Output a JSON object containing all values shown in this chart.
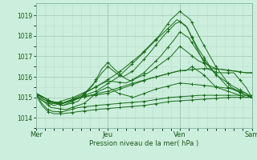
{
  "background_color": "#cceedd",
  "plot_bg_color": "#cceedd",
  "grid_major_color": "#aaccbb",
  "grid_minor_color": "#bbddcc",
  "line_color": "#1a6e1a",
  "xlabel": "Pression niveau de la mer( hPa )",
  "ylim": [
    1013.7,
    1019.6
  ],
  "yticks": [
    1014,
    1015,
    1016,
    1017,
    1018,
    1019
  ],
  "day_labels": [
    "Mer",
    "Jeu",
    "Ven",
    "Sam"
  ],
  "day_positions": [
    0,
    48,
    96,
    144
  ],
  "xlim": [
    0,
    144
  ]
}
